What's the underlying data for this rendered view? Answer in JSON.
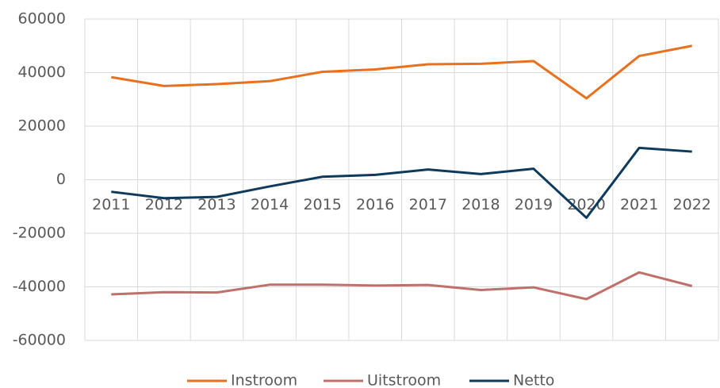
{
  "chart_data": {
    "type": "line",
    "categories": [
      "2011",
      "2012",
      "2013",
      "2014",
      "2015",
      "2016",
      "2017",
      "2018",
      "2019",
      "2020",
      "2021",
      "2022"
    ],
    "series": [
      {
        "name": "Instroom",
        "color": "#e8711f",
        "values": [
          38300,
          35000,
          35700,
          36800,
          40300,
          41200,
          43100,
          43300,
          44300,
          30400,
          46200,
          50000
        ]
      },
      {
        "name": "Uitstroom",
        "color": "#c0706a",
        "values": [
          -42800,
          -42000,
          -42100,
          -39200,
          -39200,
          -39500,
          -39300,
          -41200,
          -40200,
          -44600,
          -34600,
          -39700
        ]
      },
      {
        "name": "Netto",
        "color": "#0e3b5c",
        "values": [
          -4500,
          -6900,
          -6400,
          -2500,
          1100,
          1800,
          3800,
          2100,
          4100,
          -14200,
          11900,
          10500
        ]
      }
    ],
    "ylim": [
      -60000,
      60000
    ],
    "yticks": [
      -60000,
      -40000,
      -20000,
      0,
      20000,
      40000,
      60000
    ],
    "grid": true,
    "legend": "bottom"
  }
}
